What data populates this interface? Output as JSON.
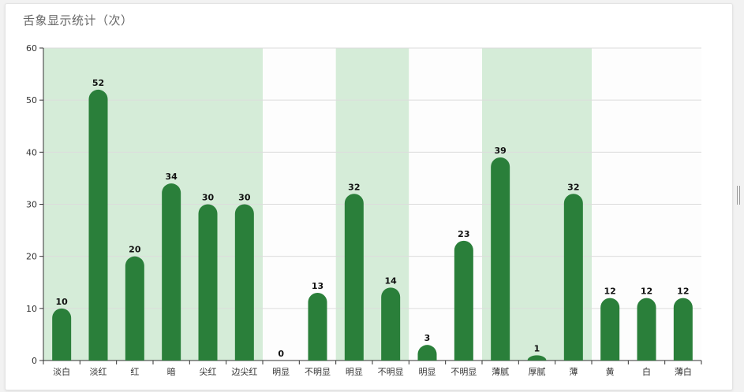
{
  "title": "舌象显示统计（次）",
  "chart_data": {
    "type": "bar",
    "title": "舌象显示统计（次）",
    "xlabel": "",
    "ylabel": "",
    "ylim": [
      0,
      60
    ],
    "yticks": [
      0,
      10,
      20,
      30,
      40,
      50,
      60
    ],
    "grid": true,
    "bar_color": "#2a7f3a",
    "band_color": "#d5ecd8",
    "plain_band_color": "#fdfdfd",
    "categories": [
      "淡白",
      "淡红",
      "红",
      "暗",
      "尖红",
      "边尖红",
      "明显",
      "不明显",
      "明显",
      "不明显",
      "明显",
      "不明显",
      "薄腻",
      "厚腻",
      "薄",
      "黄",
      "白",
      "薄白"
    ],
    "values": [
      10,
      52,
      20,
      34,
      30,
      30,
      0,
      13,
      32,
      14,
      3,
      23,
      39,
      1,
      32,
      12,
      12,
      12
    ],
    "groups": [
      {
        "start": 0,
        "end": 5,
        "highlight": true
      },
      {
        "start": 6,
        "end": 7,
        "highlight": false
      },
      {
        "start": 8,
        "end": 9,
        "highlight": true
      },
      {
        "start": 10,
        "end": 11,
        "highlight": false
      },
      {
        "start": 12,
        "end": 14,
        "highlight": true
      },
      {
        "start": 15,
        "end": 17,
        "highlight": false
      }
    ]
  }
}
